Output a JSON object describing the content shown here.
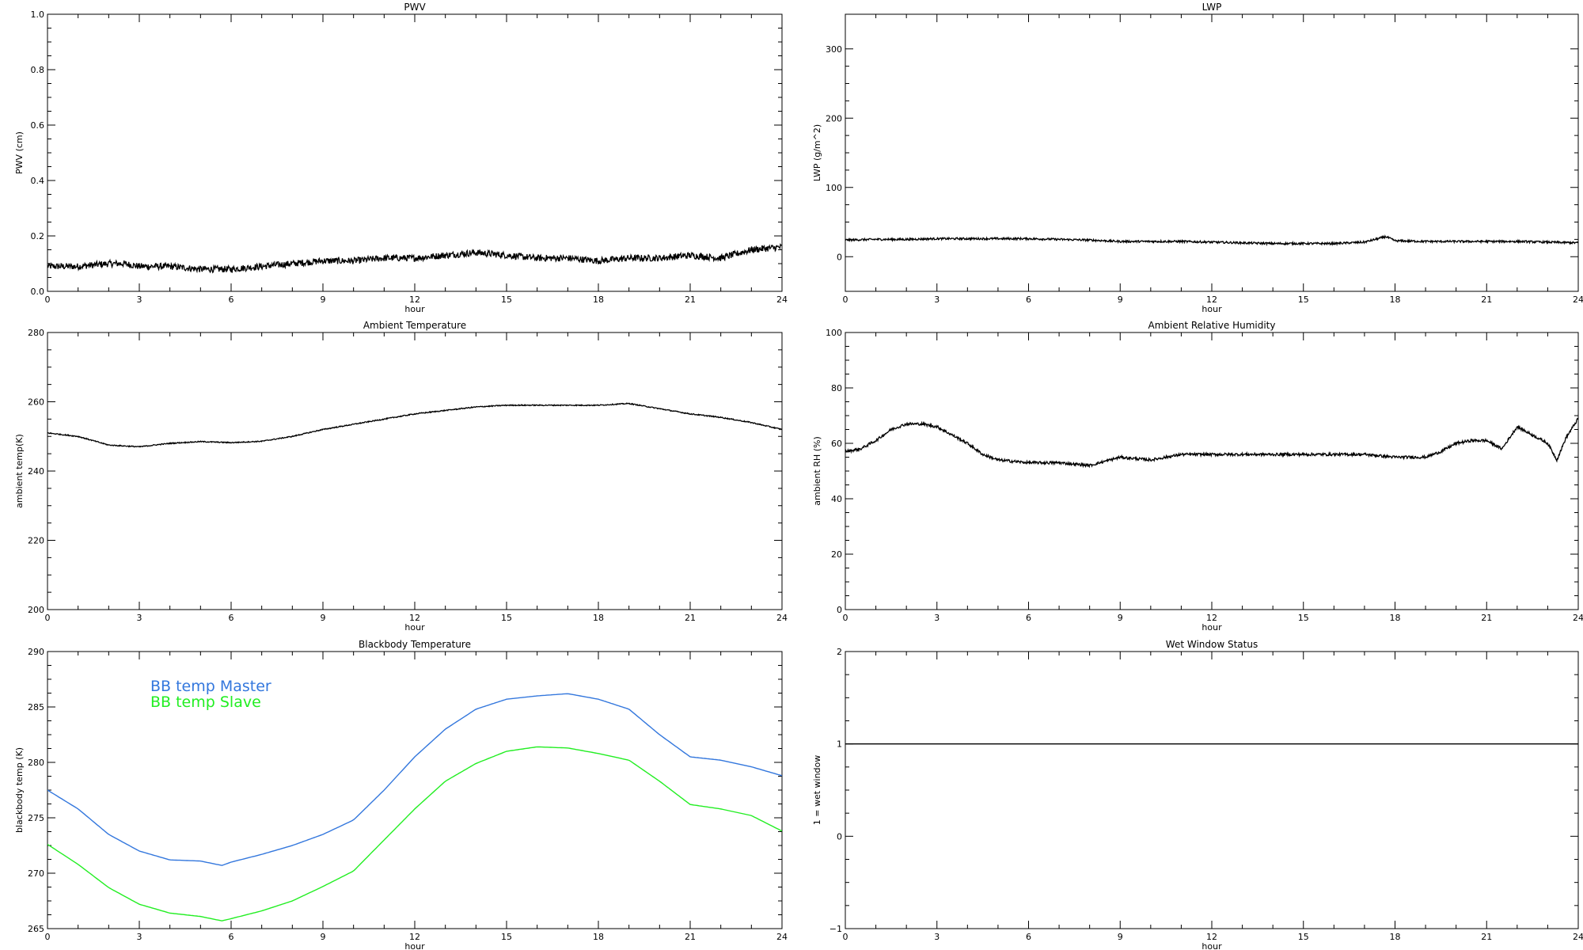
{
  "chart_data": [
    {
      "type": "line",
      "title": "PWV",
      "xlabel": "hour",
      "ylabel": "PWV (cm)",
      "xlim": [
        0,
        24
      ],
      "ylim": [
        0,
        1
      ],
      "xticks": [
        0,
        3,
        6,
        9,
        12,
        15,
        18,
        21,
        24
      ],
      "yticks": [
        "0.0",
        "0.2",
        "0.4",
        "0.6",
        "0.8",
        "1.0"
      ],
      "noise": 0.012,
      "series": [
        {
          "color": "#000000",
          "x": [
            0,
            1,
            2,
            2.5,
            3,
            4,
            5,
            6,
            7,
            8,
            9,
            10,
            11,
            12,
            13,
            14,
            15,
            16,
            17,
            18,
            19,
            20,
            21,
            22,
            23,
            24
          ],
          "y": [
            0.09,
            0.09,
            0.1,
            0.1,
            0.09,
            0.09,
            0.08,
            0.08,
            0.09,
            0.1,
            0.11,
            0.11,
            0.12,
            0.12,
            0.13,
            0.14,
            0.13,
            0.12,
            0.12,
            0.11,
            0.12,
            0.12,
            0.13,
            0.12,
            0.15,
            0.16
          ]
        }
      ]
    },
    {
      "type": "line",
      "title": "LWP",
      "xlabel": "hour",
      "ylabel": "LWP (g/m^2)",
      "xlim": [
        0,
        24
      ],
      "ylim": [
        -50,
        350
      ],
      "xticks": [
        0,
        3,
        6,
        9,
        12,
        15,
        18,
        21,
        24
      ],
      "yticks": [
        "0",
        "100",
        "200",
        "300"
      ],
      "noise": 1.5,
      "series": [
        {
          "color": "#000000",
          "x": [
            0,
            1,
            2,
            3,
            4,
            5,
            6,
            7,
            8,
            9,
            10,
            11,
            12,
            13,
            14,
            15,
            16,
            17,
            17.7,
            18,
            19,
            20,
            21,
            22,
            23,
            24
          ],
          "y": [
            24,
            25,
            25,
            26,
            26,
            26,
            26,
            25,
            24,
            22,
            22,
            22,
            21,
            20,
            19,
            19,
            19,
            21,
            29,
            23,
            22,
            22,
            22,
            22,
            21,
            20
          ]
        }
      ]
    },
    {
      "type": "line",
      "title": "Ambient Temperature",
      "xlabel": "hour",
      "ylabel": "ambient temp(K)",
      "xlim": [
        0,
        24
      ],
      "ylim": [
        200,
        280
      ],
      "xticks": [
        0,
        3,
        6,
        9,
        12,
        15,
        18,
        21,
        24
      ],
      "yticks": [
        "200",
        "220",
        "240",
        "260",
        "280"
      ],
      "noise": 0.15,
      "series": [
        {
          "color": "#000000",
          "x": [
            0,
            1,
            2,
            3,
            4,
            5,
            6,
            7,
            8,
            9,
            10,
            11,
            12,
            13,
            14,
            15,
            16,
            17,
            18,
            19,
            20,
            21,
            22,
            23,
            24
          ],
          "y": [
            251,
            250,
            247.5,
            247,
            248,
            248.5,
            248.2,
            248.6,
            250,
            252,
            253.5,
            255,
            256.5,
            257.5,
            258.5,
            259,
            259,
            259,
            259,
            259.5,
            258,
            256.5,
            255.5,
            254,
            252
          ]
        }
      ]
    },
    {
      "type": "line",
      "title": "Ambient Relative Humidity",
      "xlabel": "hour",
      "ylabel": "ambient RH (%)",
      "xlim": [
        0,
        24
      ],
      "ylim": [
        0,
        100
      ],
      "xticks": [
        0,
        3,
        6,
        9,
        12,
        15,
        18,
        21,
        24
      ],
      "yticks": [
        "0",
        "20",
        "40",
        "60",
        "80",
        "100"
      ],
      "noise": 0.5,
      "series": [
        {
          "color": "#000000",
          "x": [
            0,
            0.5,
            1,
            1.5,
            2,
            2.5,
            3,
            3.5,
            4,
            4.5,
            5,
            6,
            7,
            8,
            9,
            10,
            11,
            12,
            13,
            14,
            15,
            16,
            17,
            18,
            19,
            19.5,
            20,
            20.5,
            21,
            21.5,
            22,
            22.5,
            23,
            23.3,
            23.6,
            24
          ],
          "y": [
            57,
            58,
            61,
            65,
            67,
            67,
            66,
            63,
            60,
            56,
            54,
            53,
            53,
            52,
            55,
            54,
            56,
            56,
            56,
            56,
            56,
            56,
            56,
            55,
            55,
            57,
            60,
            61,
            61,
            58,
            66,
            63,
            60,
            54,
            62,
            69
          ]
        }
      ]
    },
    {
      "type": "line",
      "title": "Blackbody Temperature",
      "xlabel": "hour",
      "ylabel": "blackbody temp (K)",
      "xlim": [
        0,
        24
      ],
      "ylim": [
        265,
        290
      ],
      "xticks": [
        0,
        3,
        6,
        9,
        12,
        15,
        18,
        21,
        24
      ],
      "yticks": [
        "265",
        "270",
        "275",
        "280",
        "285",
        "290"
      ],
      "noise": 0,
      "legend": {
        "placement": "top-left"
      },
      "series": [
        {
          "name": "BB temp Master",
          "color": "#3377dd",
          "x": [
            0,
            1,
            2,
            3,
            4,
            5,
            5.7,
            6,
            7,
            8,
            9,
            10,
            11,
            12,
            13,
            14,
            15,
            16,
            17,
            18,
            19,
            20,
            21,
            22,
            23,
            24
          ],
          "y": [
            277.5,
            275.8,
            273.5,
            272,
            271.2,
            271.1,
            270.7,
            271,
            271.7,
            272.5,
            273.5,
            274.8,
            277.5,
            280.5,
            283,
            284.8,
            285.7,
            286,
            286.2,
            285.7,
            284.8,
            282.5,
            280.5,
            280.2,
            279.6,
            278.8
          ]
        },
        {
          "name": "BB temp Slave",
          "color": "#22ee22",
          "x": [
            0,
            1,
            2,
            3,
            4,
            5,
            5.7,
            6,
            7,
            8,
            9,
            10,
            11,
            12,
            13,
            14,
            15,
            16,
            17,
            18,
            19,
            20,
            21,
            22,
            23,
            24
          ],
          "y": [
            272.6,
            270.8,
            268.7,
            267.2,
            266.4,
            266.1,
            265.7,
            265.9,
            266.6,
            267.5,
            268.8,
            270.2,
            273,
            275.8,
            278.3,
            279.9,
            281,
            281.4,
            281.3,
            280.8,
            280.2,
            278.3,
            276.2,
            275.8,
            275.2,
            273.8
          ]
        }
      ]
    },
    {
      "type": "line",
      "title": "Wet Window Status",
      "xlabel": "hour",
      "ylabel": "1 = wet window",
      "xlim": [
        0,
        24
      ],
      "ylim": [
        -1,
        2
      ],
      "xticks": [
        0,
        3,
        6,
        9,
        12,
        15,
        18,
        21,
        24
      ],
      "yticks": [
        "−1",
        "0",
        "1",
        "2"
      ],
      "noise": 0,
      "series": [
        {
          "color": "#000000",
          "x": [
            0,
            24
          ],
          "y": [
            1,
            1
          ]
        }
      ]
    }
  ]
}
